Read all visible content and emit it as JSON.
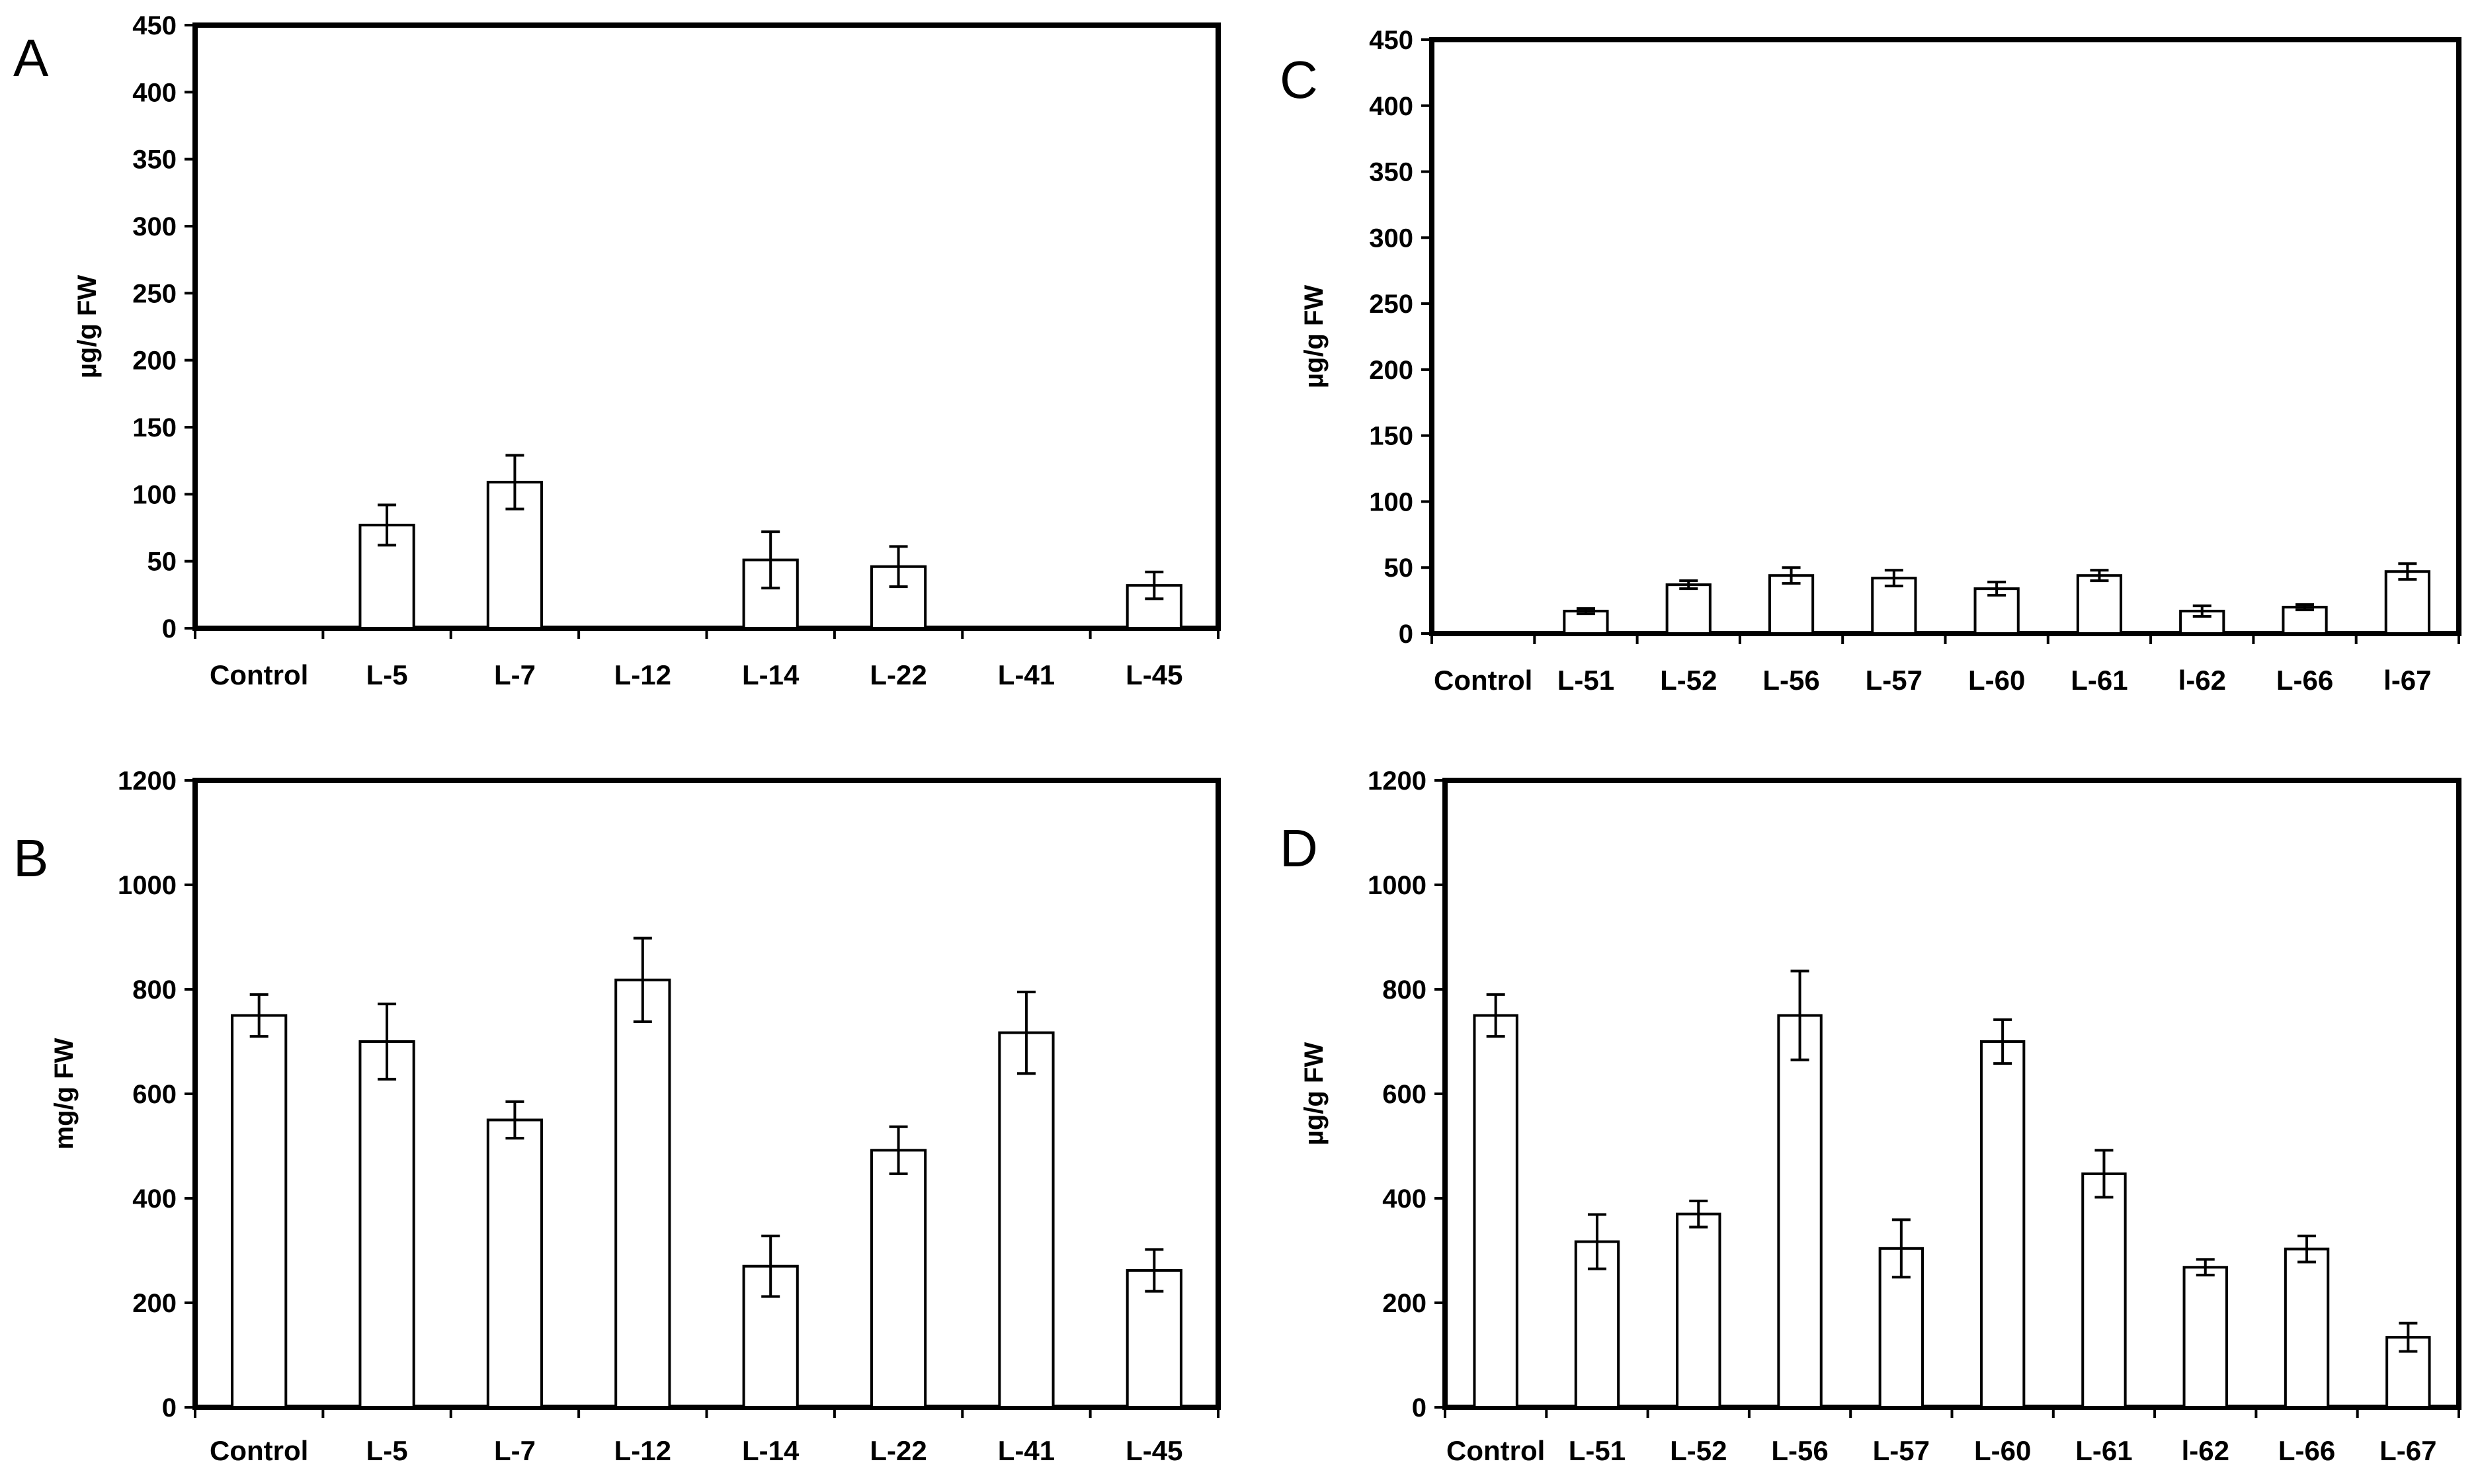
{
  "chart_data": [
    {
      "panel": "A",
      "type": "bar",
      "ylabel": "µg/g FW",
      "ylim": [
        0,
        450
      ],
      "yticks": [
        0,
        50,
        100,
        150,
        200,
        250,
        300,
        350,
        400,
        450
      ],
      "categories": [
        "Control",
        "L-5",
        "L-7",
        "L-12",
        "L-14",
        "L-22",
        "L-41",
        "L-45"
      ],
      "values": [
        0,
        77,
        109,
        0,
        51,
        46,
        0,
        32
      ],
      "errors": [
        0,
        15,
        20,
        0,
        21,
        15,
        0,
        10
      ]
    },
    {
      "panel": "B",
      "type": "bar",
      "ylabel": "mg/g FW",
      "ylim": [
        0,
        1200
      ],
      "yticks": [
        0,
        200,
        400,
        600,
        800,
        1000,
        1200
      ],
      "categories": [
        "Control",
        "L-5",
        "L-7",
        "L-12",
        "L-14",
        "L-22",
        "L-41",
        "L-45"
      ],
      "values": [
        750,
        700,
        550,
        818,
        270,
        492,
        717,
        262
      ],
      "errors": [
        40,
        72,
        35,
        80,
        58,
        45,
        78,
        40
      ]
    },
    {
      "panel": "C",
      "type": "bar",
      "ylabel": "µg/g FW",
      "ylim": [
        0,
        450
      ],
      "yticks": [
        0,
        50,
        100,
        150,
        200,
        250,
        300,
        350,
        400,
        450
      ],
      "categories": [
        "Control",
        "L-51",
        "L-52",
        "L-56",
        "L-57",
        "L-60",
        "L-61",
        "l-62",
        "L-66",
        "l-67"
      ],
      "values": [
        0,
        17,
        37,
        44,
        42,
        34,
        44,
        17,
        20,
        47
      ],
      "errors": [
        0,
        2,
        3,
        6,
        6,
        5,
        4,
        4,
        2,
        6
      ]
    },
    {
      "panel": "D",
      "type": "bar",
      "ylabel": "µg/g FW",
      "ylim": [
        0,
        1200
      ],
      "yticks": [
        0,
        200,
        400,
        600,
        800,
        1000,
        1200
      ],
      "categories": [
        "Control",
        "L-51",
        "L-52",
        "L-56",
        "L-57",
        "L-60",
        "L-61",
        "l-62",
        "L-66",
        "L-67"
      ],
      "values": [
        750,
        317,
        370,
        750,
        304,
        700,
        447,
        268,
        303,
        134
      ],
      "errors": [
        40,
        52,
        25,
        85,
        55,
        42,
        45,
        15,
        25,
        27
      ]
    }
  ]
}
